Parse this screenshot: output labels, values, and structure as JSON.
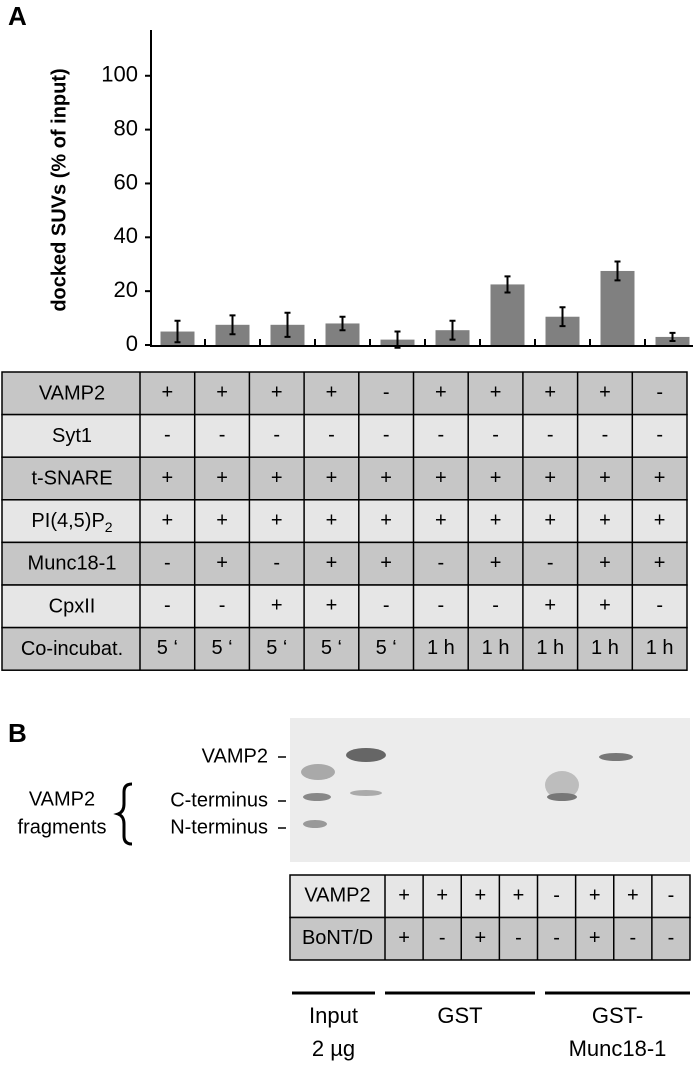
{
  "panel_a": {
    "label": "A"
  },
  "chart_data": {
    "type": "bar",
    "y_label": "docked SUVs (% of input)",
    "color": "#808080",
    "categories": [
      null,
      null,
      null,
      null,
      null,
      null,
      null,
      null,
      null,
      null
    ],
    "values": [
      5,
      7.5,
      7.5,
      8,
      2,
      5.5,
      22.5,
      10.5,
      27.5,
      3
    ],
    "errors": [
      4,
      3.5,
      4.5,
      2.5,
      3,
      3.5,
      3,
      3.5,
      3.5,
      1.5
    ],
    "ylim": [
      0,
      117
    ],
    "yticks": [
      0,
      20,
      40,
      60,
      80,
      100
    ]
  },
  "table_a": {
    "rows": [
      {
        "label": {
          "text": "VAMP2"
        },
        "cells": [
          "+",
          "+",
          "+",
          "+",
          "-",
          "+",
          "+",
          "+",
          "+",
          "-"
        ]
      },
      {
        "label": {
          "text": "Syt1"
        },
        "cells": [
          "-",
          "-",
          "-",
          "-",
          "-",
          "-",
          "-",
          "-",
          "-",
          "-"
        ]
      },
      {
        "label": {
          "text": "t-SNARE"
        },
        "cells": [
          "+",
          "+",
          "+",
          "+",
          "+",
          "+",
          "+",
          "+",
          "+",
          "+"
        ]
      },
      {
        "label": {
          "text": "PI(4,5)P",
          "sub": "2"
        },
        "cells": [
          "+",
          "+",
          "+",
          "+",
          "+",
          "+",
          "+",
          "+",
          "+",
          "+"
        ]
      },
      {
        "label": {
          "text": "Munc18-1"
        },
        "cells": [
          "-",
          "+",
          "-",
          "+",
          "+",
          "-",
          "+",
          "-",
          "+",
          "+"
        ]
      },
      {
        "label": {
          "text": "CpxII"
        },
        "cells": [
          "-",
          "-",
          "+",
          "+",
          "-",
          "-",
          "-",
          "+",
          "+",
          "-"
        ]
      },
      {
        "label": {
          "text": "Co-incubat."
        },
        "cells": [
          "5 ‘",
          "5 ‘",
          "5 ‘",
          "5 ‘",
          "5 ‘",
          "1 h",
          "1 h",
          "1 h",
          "1 h",
          "1 h"
        ]
      }
    ]
  },
  "panel_b": {
    "label": "B",
    "gel_labels": [
      "VAMP2",
      "C-terminus",
      "N-terminus"
    ],
    "fragments_label": [
      "VAMP2",
      "fragments"
    ],
    "table": {
      "rows": [
        {
          "label": "VAMP2",
          "cells": [
            "+",
            "+",
            "+",
            "+",
            "-",
            "+",
            "+",
            "-"
          ]
        },
        {
          "label": "BoNT/D",
          "cells": [
            "+",
            "-",
            "+",
            "-",
            "-",
            "+",
            "-",
            "-"
          ]
        }
      ]
    },
    "groups": [
      {
        "lines": [
          "Input",
          "2 µg"
        ]
      },
      {
        "lines": [
          "GST"
        ]
      },
      {
        "lines": [
          "GST-",
          "Munc18-1"
        ]
      }
    ]
  }
}
